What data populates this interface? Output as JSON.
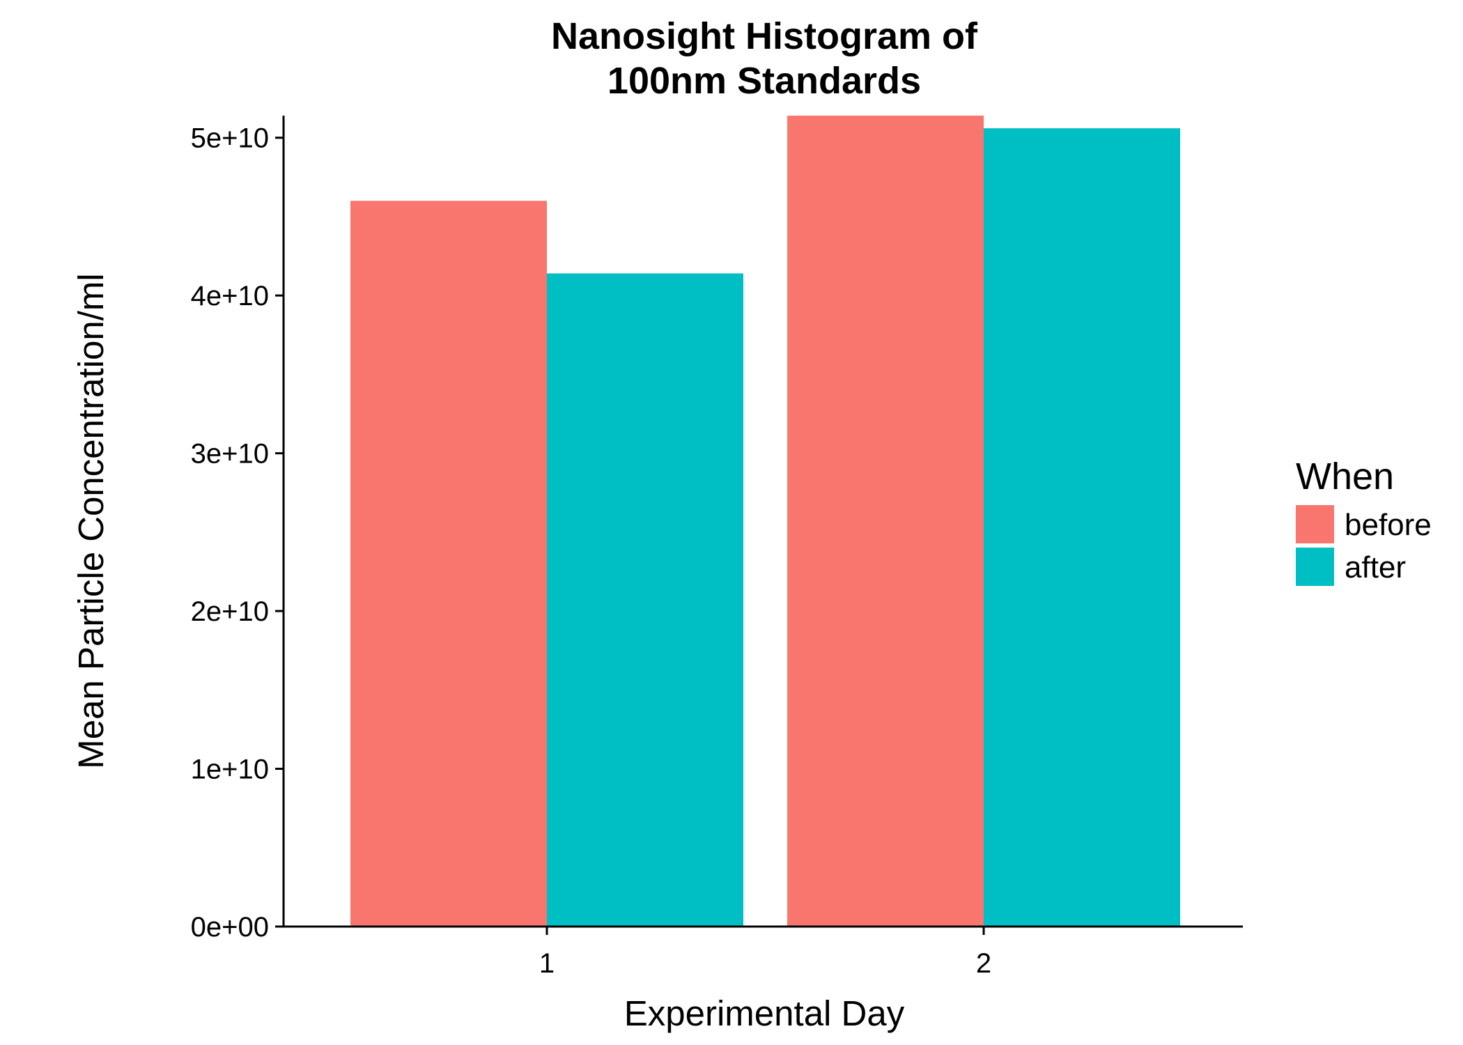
{
  "chart_data": {
    "type": "bar",
    "title_lines": [
      "Nanosight Histogram of",
      "100nm Standards"
    ],
    "xlabel": "Experimental Day",
    "ylabel": "Mean Particle Concentration/ml",
    "categories": [
      "1",
      "2"
    ],
    "series": [
      {
        "name": "before",
        "color": "#F8766D",
        "values": [
          46000000000.0,
          51400000000.0
        ]
      },
      {
        "name": "after",
        "color": "#00BFC4",
        "values": [
          41400000000.0,
          50600000000.0
        ]
      }
    ],
    "ylim": [
      0,
      51400000000.0
    ],
    "yticks": [
      0,
      10000000000.0,
      20000000000.0,
      30000000000.0,
      40000000000.0,
      50000000000.0
    ],
    "ytick_labels": [
      "0e+00",
      "1e+10",
      "2e+10",
      "3e+10",
      "4e+10",
      "5e+10"
    ],
    "legend": {
      "title": "When",
      "position": "right"
    },
    "grid": false
  }
}
